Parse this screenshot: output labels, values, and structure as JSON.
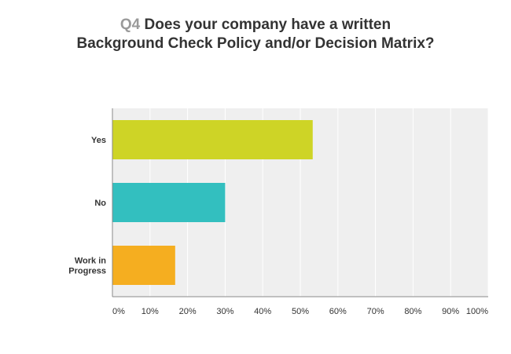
{
  "question": {
    "number": "Q4",
    "text": "Does your company have a written Background Check Policy and/or Decision Matrix?"
  },
  "colors": {
    "plot_background": "#efefef",
    "gridline": "#ffffff",
    "axis": "#888888"
  },
  "chart_data": {
    "type": "bar",
    "orientation": "horizontal",
    "categories": [
      "Yes",
      "No",
      "Work in\nProgress"
    ],
    "values": [
      53.3,
      30.0,
      16.7
    ],
    "unit": "%",
    "colors": [
      "#ced426",
      "#33bfbf",
      "#f5ae20"
    ],
    "xlim": [
      0,
      100
    ],
    "x_ticks": [
      "0%",
      "10%",
      "20%",
      "30%",
      "40%",
      "50%",
      "60%",
      "70%",
      "80%",
      "90%",
      "100%"
    ],
    "grid": true,
    "legend": "none"
  }
}
